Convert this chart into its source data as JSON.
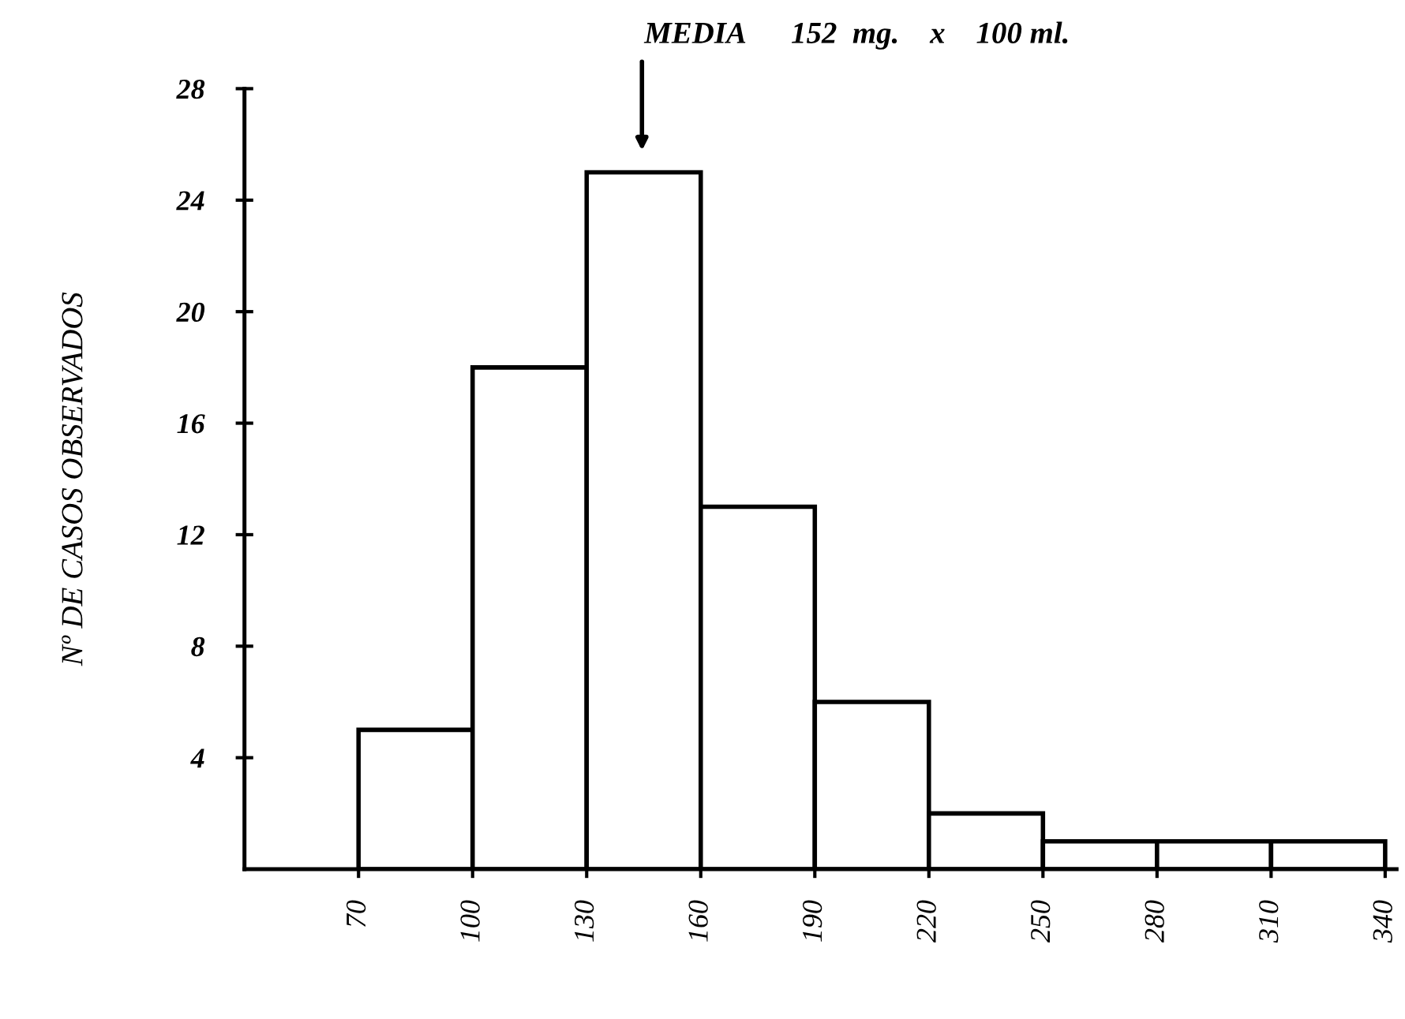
{
  "chart_data": {
    "type": "histogram",
    "ylabel": "Nº DE CASOS OBSERVADOS",
    "bins": [
      70,
      100,
      130,
      160,
      190,
      220,
      250,
      280,
      310,
      340
    ],
    "values": [
      5,
      18,
      25,
      13,
      6,
      2,
      1,
      1,
      1
    ],
    "color": "#ffffff",
    "xlim": [
      40,
      343
    ],
    "xticks": [
      70,
      100,
      130,
      160,
      190,
      220,
      250,
      280,
      310,
      340
    ],
    "ylim": [
      0,
      28
    ],
    "yticks": [
      4,
      8,
      12,
      16,
      20,
      24,
      28
    ],
    "annotations": [
      "MEDIA      152  mg.    x    100 ml."
    ],
    "grid": false,
    "legend": false
  }
}
